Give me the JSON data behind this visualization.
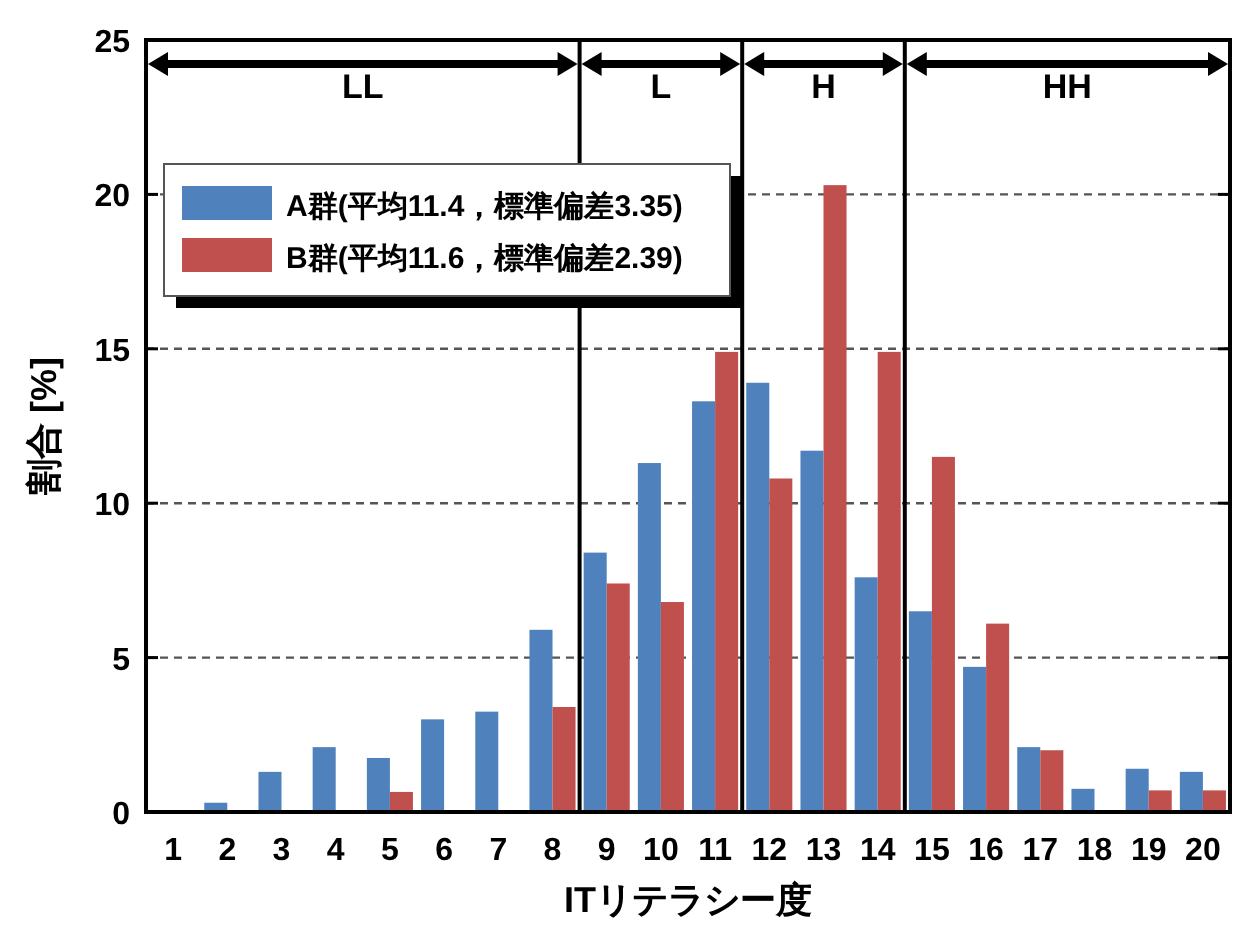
{
  "chart_data": {
    "type": "bar",
    "xlabel": "ITリテラシー度",
    "ylabel": "割合 [%]",
    "x": [
      1,
      2,
      3,
      4,
      5,
      6,
      7,
      8,
      9,
      10,
      11,
      12,
      13,
      14,
      15,
      16,
      17,
      18,
      19,
      20
    ],
    "series": [
      {
        "name": "A群(平均11.4，標準偏差3.35)",
        "color": "#4f81bd",
        "values": [
          0,
          0.3,
          1.3,
          2.1,
          1.75,
          3.0,
          3.25,
          5.9,
          8.4,
          11.3,
          13.3,
          13.9,
          11.7,
          7.6,
          6.5,
          4.7,
          2.1,
          0.75,
          1.4,
          1.3
        ]
      },
      {
        "name": "B群(平均11.6，標準偏差2.39)",
        "color": "#c0504d",
        "values": [
          0,
          0,
          0,
          0,
          0.65,
          0,
          0,
          3.4,
          7.4,
          6.8,
          14.9,
          10.8,
          20.3,
          14.9,
          11.5,
          6.1,
          2.0,
          0,
          0.7,
          0.7
        ]
      }
    ],
    "xlim": [
      0.5,
      20.5
    ],
    "xticks": [
      1,
      2,
      3,
      4,
      5,
      6,
      7,
      8,
      9,
      10,
      11,
      12,
      13,
      14,
      15,
      16,
      17,
      18,
      19,
      20
    ],
    "ylim": [
      0,
      25
    ],
    "yticks": [
      0,
      5,
      10,
      15,
      20,
      25
    ],
    "ref_lines": [
      {
        "axis": "x",
        "value": 8.5,
        "color": "#000000"
      },
      {
        "axis": "x",
        "value": 11.5,
        "color": "#000000"
      },
      {
        "axis": "x",
        "value": 14.5,
        "color": "#000000"
      }
    ],
    "annotations": [
      "LL",
      "L",
      "H",
      "HH"
    ],
    "grid": "y",
    "legend": "top left"
  }
}
